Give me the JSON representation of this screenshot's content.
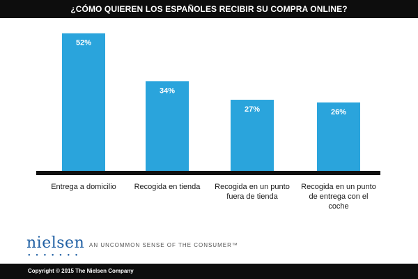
{
  "header": {
    "title": "¿CÓMO QUIEREN LOS ESPAÑOLES RECIBIR SU COMPRA ONLINE?"
  },
  "chart_data": {
    "type": "bar",
    "title": "¿CÓMO QUIEREN LOS ESPAÑOLES RECIBIR SU COMPRA ONLINE?",
    "categories": [
      [
        "Entrega a domicilio"
      ],
      [
        "Recogida en tienda"
      ],
      [
        "Recogida en un punto",
        "fuera de tienda"
      ],
      [
        "Recogida en un punto",
        "de entrega con el",
        "coche"
      ]
    ],
    "values": [
      52,
      34,
      27,
      26
    ],
    "value_labels": [
      "52%",
      "34%",
      "27%",
      "26%"
    ],
    "unit": "%",
    "ylim": [
      0,
      60
    ],
    "bar_color": "#2aa4dc",
    "axis_color": "#111111",
    "grid": false
  },
  "brand": {
    "logo_text": "nielsen",
    "tagline": "AN UNCOMMON SENSE OF THE CONSUMER™"
  },
  "footer": {
    "copyright": "Copyright © 2015 The Nielsen Company"
  }
}
